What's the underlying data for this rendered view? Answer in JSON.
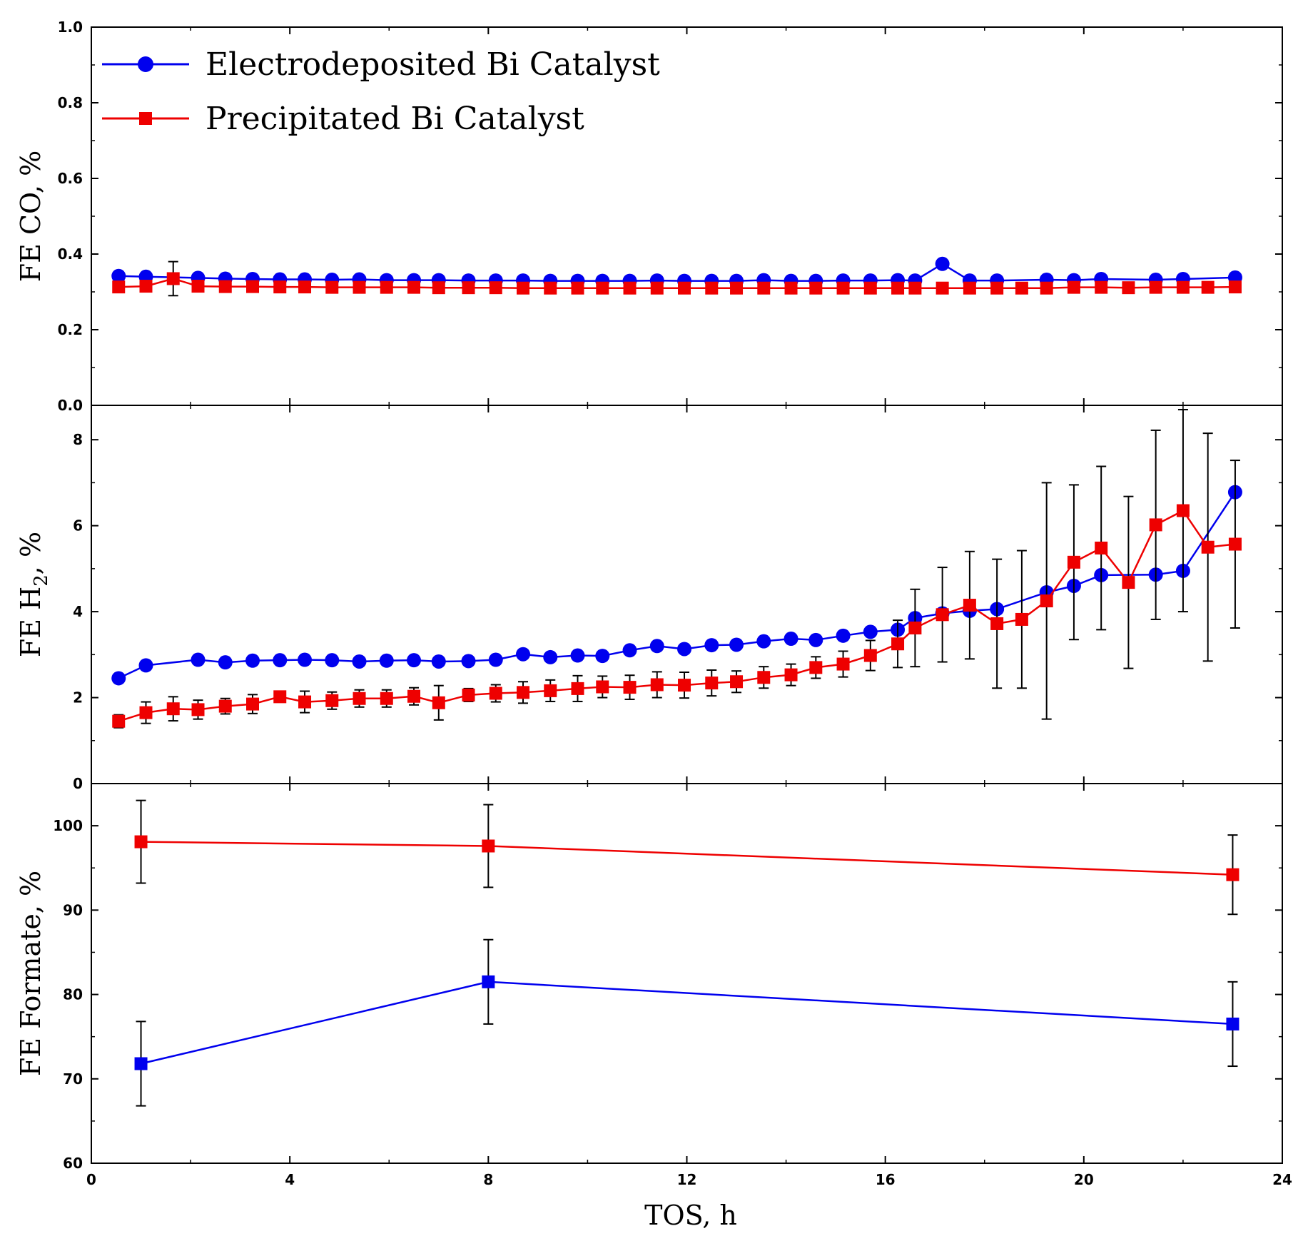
{
  "chart_data": {
    "type": "line",
    "xlabel": "TOS, h",
    "xlim": [
      0,
      24
    ],
    "xticks": [
      0,
      4,
      8,
      12,
      16,
      20,
      24
    ],
    "legend": {
      "placement": "top-left",
      "entries": [
        {
          "name": "Electrodeposited Bi Catalyst",
          "color": "#0000ee",
          "marker": "circle"
        },
        {
          "name": "Precipitated Bi Catalyst",
          "color": "#ee0000",
          "marker": "square"
        }
      ]
    },
    "panels": [
      {
        "id": "co",
        "ylabel": "FE CO, %",
        "ylim": [
          0,
          1
        ],
        "yticks": [
          0.0,
          0.2,
          0.4,
          0.6,
          0.8,
          1.0
        ],
        "tick_format": "1",
        "series": [
          {
            "name": "Electrodeposited Bi Catalyst",
            "color": "#0000ee",
            "marker": "circle",
            "x": [
              0.55,
              1.1,
              2.15,
              2.7,
              3.25,
              3.8,
              4.3,
              4.85,
              5.4,
              5.95,
              6.5,
              7.0,
              7.6,
              8.15,
              8.7,
              9.25,
              9.8,
              10.3,
              10.85,
              11.4,
              11.95,
              12.5,
              13.0,
              13.55,
              14.1,
              14.6,
              15.15,
              15.7,
              16.25,
              16.6,
              17.15,
              17.7,
              18.25,
              19.25,
              19.8,
              20.35,
              21.45,
              22.0,
              23.05
            ],
            "y": [
              0.342,
              0.34,
              0.337,
              0.335,
              0.334,
              0.333,
              0.333,
              0.332,
              0.333,
              0.331,
              0.331,
              0.331,
              0.33,
              0.33,
              0.33,
              0.329,
              0.329,
              0.329,
              0.329,
              0.33,
              0.329,
              0.329,
              0.329,
              0.331,
              0.329,
              0.329,
              0.33,
              0.33,
              0.331,
              0.33,
              0.374,
              0.33,
              0.33,
              0.332,
              0.331,
              0.334,
              0.332,
              0.334,
              0.338
            ]
          },
          {
            "name": "Precipitated Bi Catalyst",
            "color": "#ee0000",
            "marker": "square",
            "x": [
              0.55,
              1.1,
              1.65,
              2.15,
              2.7,
              3.25,
              3.8,
              4.3,
              4.85,
              5.4,
              5.95,
              6.5,
              7.0,
              7.6,
              8.15,
              8.7,
              9.25,
              9.8,
              10.3,
              10.85,
              11.4,
              11.95,
              12.5,
              13.0,
              13.55,
              14.1,
              14.6,
              15.15,
              15.7,
              16.25,
              16.6,
              17.15,
              17.7,
              18.25,
              18.75,
              19.25,
              19.8,
              20.35,
              20.9,
              21.45,
              22.0,
              22.5,
              23.05
            ],
            "y": [
              0.313,
              0.315,
              0.335,
              0.315,
              0.314,
              0.314,
              0.313,
              0.313,
              0.312,
              0.312,
              0.312,
              0.312,
              0.311,
              0.311,
              0.311,
              0.31,
              0.31,
              0.31,
              0.31,
              0.31,
              0.31,
              0.31,
              0.31,
              0.31,
              0.31,
              0.31,
              0.31,
              0.31,
              0.31,
              0.31,
              0.31,
              0.31,
              0.31,
              0.31,
              0.31,
              0.31,
              0.312,
              0.312,
              0.311,
              0.312,
              0.312,
              0.312,
              0.313
            ],
            "err": [
              0.01,
              0.01,
              0.045,
              0.01,
              0.01,
              0.01,
              0.01,
              0.01,
              0.01,
              0.01,
              0.01,
              0.01,
              0.01,
              0.01,
              0.01,
              0.01,
              0.01,
              0.01,
              0.01,
              0.01,
              0.01,
              0.01,
              0.01,
              0.01,
              0.01,
              0.01,
              0.01,
              0.01,
              0.01,
              0.01,
              0.01,
              0.01,
              0.01,
              0.01,
              0.01,
              0.01,
              0.01,
              0.01,
              0.01,
              0.01,
              0.01,
              0.01,
              0.01
            ]
          }
        ]
      },
      {
        "id": "h2",
        "ylabel": "FE H",
        "ylabel_sub": "2",
        "ylabel_suffix": ", %",
        "ylim": [
          0,
          8.8
        ],
        "yticks": [
          0,
          2,
          4,
          6,
          8
        ],
        "tick_format": "0",
        "series": [
          {
            "name": "Electrodeposited Bi Catalyst",
            "color": "#0000ee",
            "marker": "circle",
            "x": [
              0.55,
              1.1,
              2.15,
              2.7,
              3.25,
              3.8,
              4.3,
              4.85,
              5.4,
              5.95,
              6.5,
              7.0,
              7.6,
              8.15,
              8.7,
              9.25,
              9.8,
              10.3,
              10.85,
              11.4,
              11.95,
              12.5,
              13.0,
              13.55,
              14.1,
              14.6,
              15.15,
              15.7,
              16.25,
              16.6,
              17.15,
              17.7,
              18.25,
              19.25,
              19.8,
              20.35,
              21.45,
              22.0,
              23.05
            ],
            "y": [
              2.45,
              2.75,
              2.88,
              2.82,
              2.86,
              2.87,
              2.88,
              2.87,
              2.84,
              2.86,
              2.87,
              2.84,
              2.85,
              2.88,
              3.01,
              2.94,
              2.98,
              2.97,
              3.1,
              3.2,
              3.13,
              3.22,
              3.23,
              3.31,
              3.37,
              3.34,
              3.44,
              3.53,
              3.58,
              3.85,
              3.96,
              4.02,
              4.06,
              4.45,
              4.6,
              4.85,
              4.86,
              4.95,
              6.78
            ]
          },
          {
            "name": "Precipitated Bi Catalyst",
            "color": "#ee0000",
            "marker": "square",
            "x": [
              0.55,
              1.1,
              1.65,
              2.15,
              2.7,
              3.25,
              3.8,
              4.3,
              4.85,
              5.4,
              5.95,
              6.5,
              7.0,
              7.6,
              8.15,
              8.7,
              9.25,
              9.8,
              10.3,
              10.85,
              11.4,
              11.95,
              12.5,
              13.0,
              13.55,
              14.1,
              14.6,
              15.15,
              15.7,
              16.25,
              16.6,
              17.15,
              17.7,
              18.25,
              18.75,
              19.25,
              19.8,
              20.35,
              20.9,
              21.45,
              22.0,
              22.5,
              23.05
            ],
            "y": [
              1.45,
              1.65,
              1.74,
              1.72,
              1.8,
              1.85,
              2.02,
              1.9,
              1.93,
              1.98,
              1.98,
              2.03,
              1.88,
              2.06,
              2.1,
              2.12,
              2.16,
              2.21,
              2.25,
              2.24,
              2.3,
              2.29,
              2.34,
              2.37,
              2.47,
              2.53,
              2.7,
              2.78,
              2.98,
              3.25,
              3.62,
              3.93,
              4.15,
              3.72,
              3.82,
              4.25,
              5.15,
              5.48,
              4.68,
              6.02,
              6.35,
              5.5,
              5.57
            ],
            "err": [
              0.15,
              0.25,
              0.28,
              0.22,
              0.18,
              0.22,
              0.12,
              0.25,
              0.2,
              0.2,
              0.2,
              0.2,
              0.4,
              0.15,
              0.2,
              0.25,
              0.25,
              0.3,
              0.25,
              0.28,
              0.3,
              0.3,
              0.3,
              0.25,
              0.25,
              0.25,
              0.25,
              0.3,
              0.35,
              0.55,
              0.9,
              1.1,
              1.25,
              1.5,
              1.6,
              2.75,
              1.8,
              1.9,
              2.0,
              2.2,
              2.35,
              2.65,
              1.95
            ]
          }
        ]
      },
      {
        "id": "formate",
        "ylabel": "FE Formate, %",
        "ylim": [
          60,
          105
        ],
        "yticks": [
          60,
          70,
          80,
          90,
          100
        ],
        "tick_format": "0",
        "series": [
          {
            "name": "Precipitated Bi Catalyst",
            "color": "#ee0000",
            "marker": "square",
            "x": [
              1,
              8,
              23
            ],
            "y": [
              98.1,
              97.6,
              94.2
            ],
            "err": [
              4.9,
              4.9,
              4.7
            ]
          },
          {
            "name": "Electrodeposited Bi Catalyst",
            "color": "#0000ee",
            "marker": "square",
            "x": [
              1,
              8,
              23
            ],
            "y": [
              71.8,
              81.5,
              76.5
            ],
            "err": [
              5.0,
              5.0,
              5.0
            ]
          }
        ]
      }
    ]
  }
}
